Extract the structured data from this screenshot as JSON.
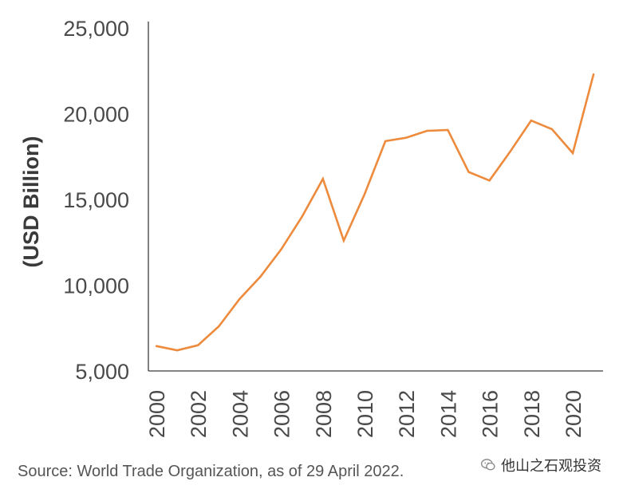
{
  "chart_data": {
    "type": "line",
    "title": "",
    "xlabel": "",
    "ylabel": "(USD Billion)",
    "x": [
      2000,
      2001,
      2002,
      2003,
      2004,
      2005,
      2006,
      2007,
      2008,
      2009,
      2010,
      2011,
      2012,
      2013,
      2014,
      2015,
      2016,
      2017,
      2018,
      2019,
      2020,
      2021
    ],
    "series": [
      {
        "values": [
          6450,
          6200,
          6500,
          7600,
          9200,
          10500,
          12100,
          14000,
          16200,
          12600,
          15300,
          18400,
          18600,
          19000,
          19050,
          16600,
          16100,
          17800,
          19600,
          19100,
          17700,
          22300
        ]
      }
    ],
    "ylim": [
      5000,
      25000
    ],
    "yticks": [
      "5,000",
      "10,000",
      "15,000",
      "20,000",
      "25,000"
    ],
    "ytick_values": [
      5000,
      10000,
      15000,
      20000,
      25000
    ],
    "xticks": [
      "2000",
      "2002",
      "2004",
      "2006",
      "2008",
      "2010",
      "2012",
      "2014",
      "2016",
      "2018",
      "2020"
    ],
    "xtick_values": [
      2000,
      2002,
      2004,
      2006,
      2008,
      2010,
      2012,
      2014,
      2016,
      2018,
      2020
    ],
    "grid": false,
    "line_color": "#ed8a3c",
    "axis_color": "#3c3c3c"
  },
  "source": "Source: World Trade Organization, as of 29 April 2022.",
  "watermark": {
    "text": "他山之石观投资",
    "icon": "wechat-icon"
  }
}
